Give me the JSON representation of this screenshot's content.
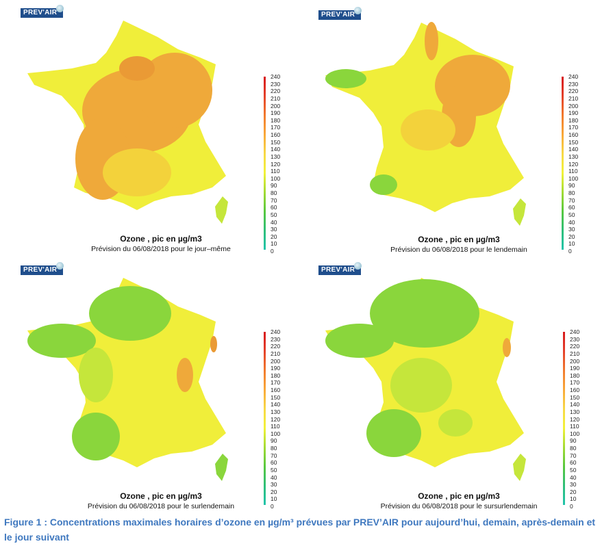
{
  "colorbar": {
    "ticks": [
      "240",
      "230",
      "220",
      "210",
      "200",
      "190",
      "180",
      "170",
      "160",
      "150",
      "140",
      "130",
      "120",
      "110",
      "100",
      "90",
      "80",
      "70",
      "60",
      "50",
      "40",
      "30",
      "20",
      "10",
      "0"
    ],
    "colors": [
      "#d7191c",
      "#e4412b",
      "#f17a2e",
      "#f9a83a",
      "#f7d847",
      "#f2f23a",
      "#a4db35",
      "#58c83e",
      "#2fbf7a",
      "#21c4ac"
    ]
  },
  "palette": {
    "green": "#8ad63c",
    "yellowgreen": "#c5e63b",
    "yellow": "#f0ee3a",
    "yelloworange": "#f3d23b",
    "orange": "#efa93a",
    "darkorange": "#ea9a35"
  },
  "panels": [
    {
      "logo": "PREV'AIR",
      "title": "Ozone , pic en µg/m3",
      "subtitle": "Prévision du 06/08/2018 pour le jour–même",
      "base": "yellow",
      "zones": [
        "orange",
        "darkorange",
        "yelloworange"
      ]
    },
    {
      "logo": "PREV'AIR",
      "title": "Ozone , pic en µg/m3",
      "subtitle": "Prévision du 06/08/2018 pour le lendemain",
      "base": "yellow",
      "zones": [
        "orange",
        "yelloworange",
        "green"
      ]
    },
    {
      "logo": "PREV'AIR",
      "title": "Ozone , pic en µg/m3",
      "subtitle": "Prévision du 06/08/2018 pour le surlendemain",
      "base": "yellow",
      "zones": [
        "green",
        "yellowgreen",
        "yelloworange"
      ]
    },
    {
      "logo": "PREV'AIR",
      "title": "Ozone , pic en µg/m3",
      "subtitle": "Prévision du 06/08/2018 pour le sursurlendemain",
      "base": "yellow",
      "zones": [
        "green",
        "yellowgreen",
        "orange"
      ]
    }
  ],
  "caption": {
    "text": "Figure 1 : Concentrations maximales horaires d’ozone en µg/m³ prévues par PREV’AIR pour aujourd’hui, demain, après-demain et le jour suivant"
  }
}
